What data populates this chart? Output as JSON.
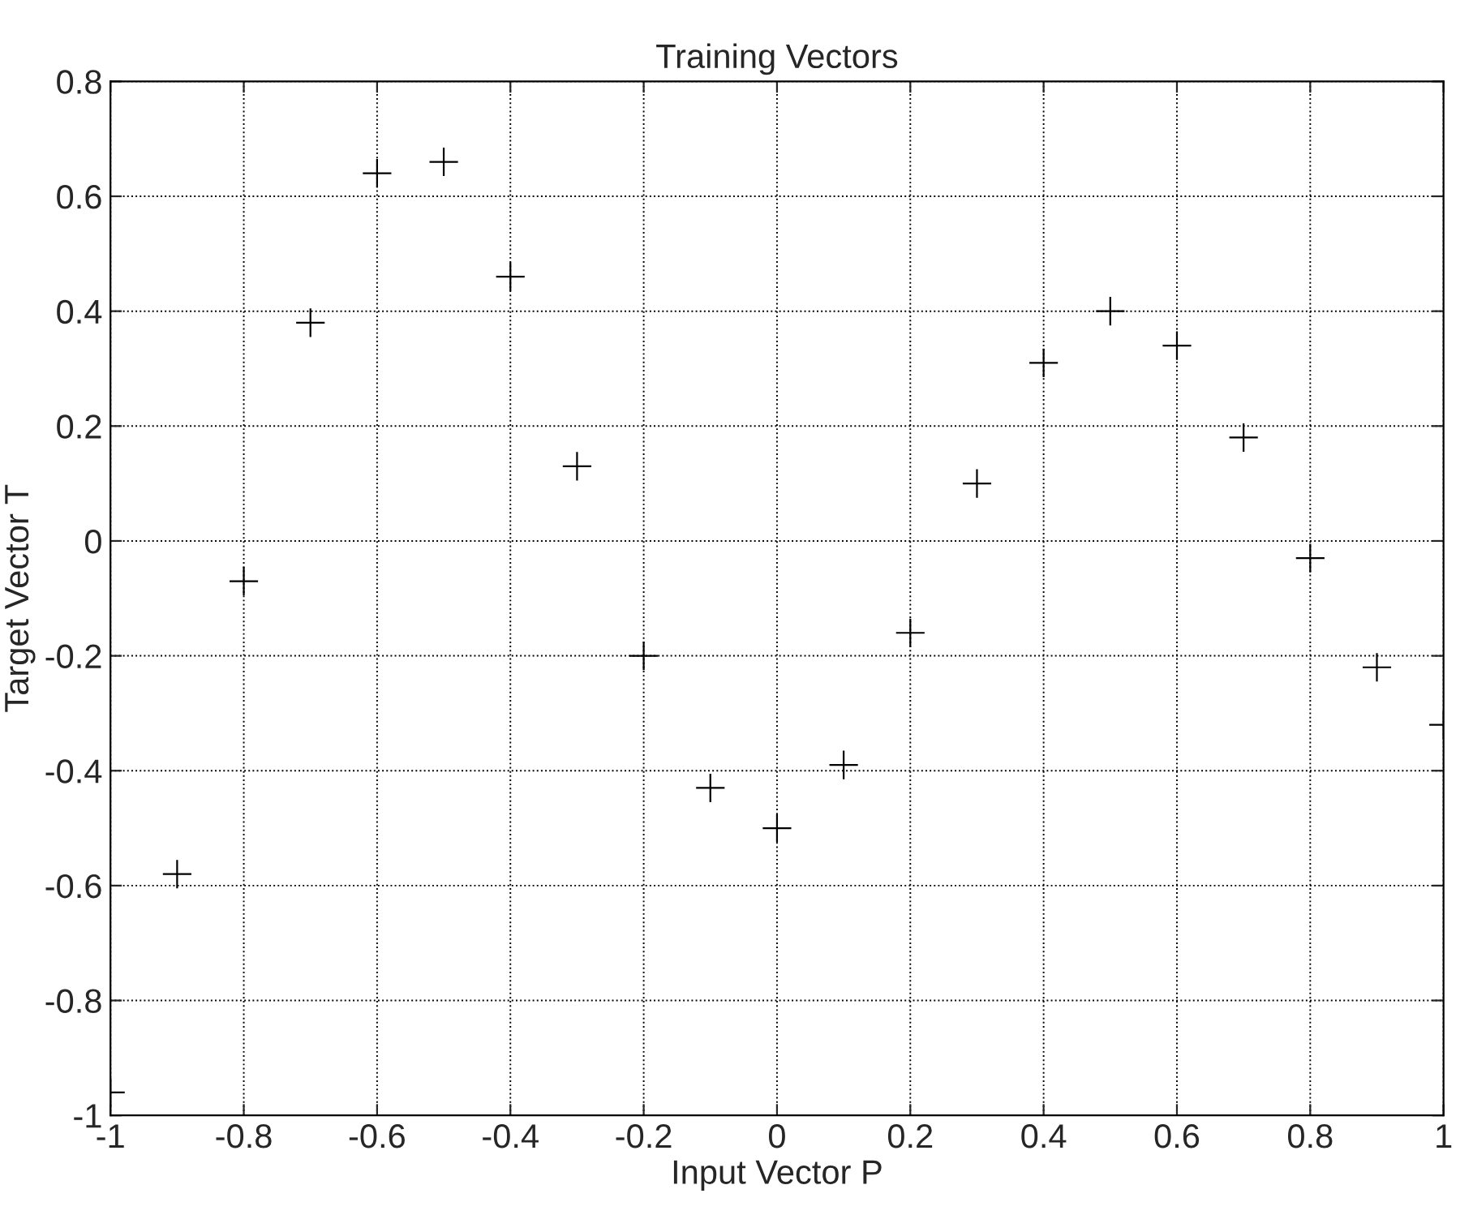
{
  "chart_data": {
    "type": "scatter",
    "title": "Training Vectors",
    "xlabel": "Input Vector P",
    "ylabel": "Target Vector T",
    "x": [
      -1,
      -0.9,
      -0.8,
      -0.7,
      -0.6,
      -0.5,
      -0.4,
      -0.3,
      -0.2,
      -0.1,
      0,
      0.1,
      0.2,
      0.3,
      0.4,
      0.5,
      0.6,
      0.7,
      0.8,
      0.9,
      1
    ],
    "series": [
      {
        "color": "#000000",
        "values": [
          -0.96,
          -0.58,
          -0.07,
          0.38,
          0.64,
          0.66,
          0.46,
          0.13,
          -0.2,
          -0.43,
          -0.5,
          -0.39,
          -0.16,
          0.1,
          0.31,
          0.4,
          0.34,
          0.18,
          -0.03,
          -0.22,
          -0.32
        ]
      }
    ],
    "xlim": [
      -1,
      1
    ],
    "ylim": [
      -1,
      0.8
    ],
    "xticks": [
      -1,
      -0.8,
      -0.6,
      -0.4,
      -0.2,
      0,
      0.2,
      0.4,
      0.6,
      0.8,
      1
    ],
    "yticks": [
      -1,
      -0.8,
      -0.6,
      -0.4,
      -0.2,
      0,
      0.2,
      0.4,
      0.6,
      0.8
    ],
    "grid": true,
    "marker": "cross",
    "legend": false
  }
}
